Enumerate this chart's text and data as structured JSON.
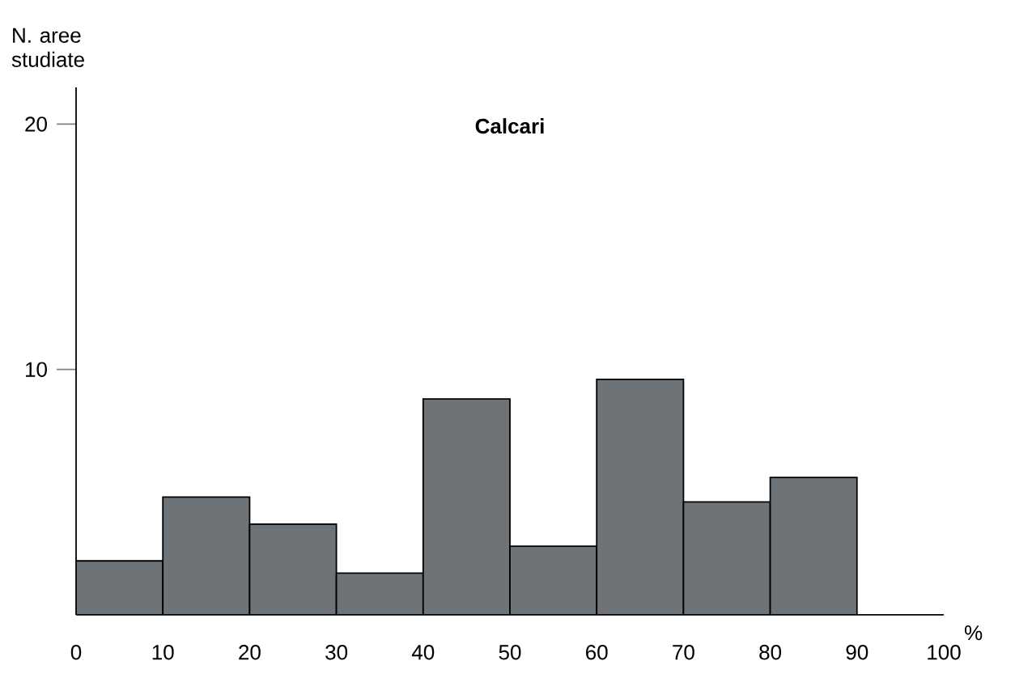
{
  "chart_data": {
    "type": "histogram",
    "title": "Calcari",
    "xlabel": "%",
    "ylabel": "N. aree studiate",
    "bins": [
      0,
      10,
      20,
      30,
      40,
      50,
      60,
      70,
      80,
      90
    ],
    "values": [
      2.2,
      4.8,
      3.7,
      1.7,
      8.8,
      2.8,
      9.6,
      4.6,
      5.6
    ],
    "color": "#6e7378",
    "xlim": [
      0,
      100
    ],
    "xticks": [
      0,
      10,
      20,
      30,
      40,
      50,
      60,
      70,
      80,
      90,
      100
    ],
    "ylim": [
      0,
      21.5
    ],
    "yticks": [
      10,
      20
    ],
    "grid": false
  }
}
